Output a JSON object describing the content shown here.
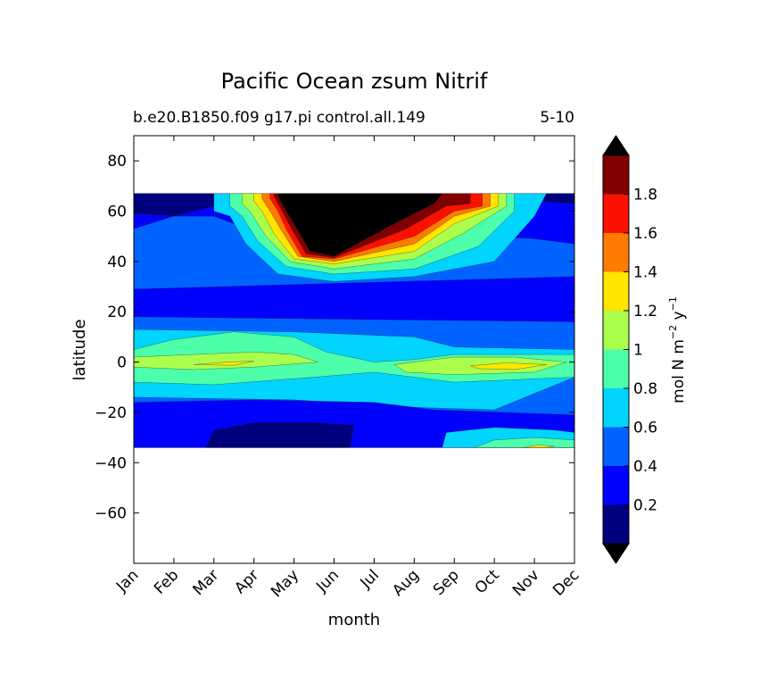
{
  "chart_data": {
    "type": "heatmap",
    "title": "Pacific Ocean zsum Nitrif",
    "subtitle_left": "b.e20.B1850.f09 g17.pi control.all.149",
    "subtitle_right": "5-10",
    "xlabel": "month",
    "ylabel": "latitude",
    "colorbar_label_main": "mol N m",
    "colorbar_label_sup1": "−2",
    "colorbar_label_mid": " y",
    "colorbar_label_sup2": "−1",
    "x_categories": [
      "Jan",
      "Feb",
      "Mar",
      "Apr",
      "May",
      "Jun",
      "Jul",
      "Aug",
      "Sep",
      "Oct",
      "Nov",
      "Dec"
    ],
    "yticks": [
      80,
      60,
      40,
      20,
      0,
      -20,
      -40,
      -60
    ],
    "ytick_labels": [
      "80",
      "60",
      "40",
      "20",
      "0",
      "−20",
      "−40",
      "−60"
    ],
    "ylim": [
      -80,
      90
    ],
    "data_lat_range": [
      -34,
      67
    ],
    "levels": [
      0.2,
      0.4,
      0.6,
      0.8,
      1.0,
      1.2,
      1.4,
      1.6,
      1.8
    ],
    "level_labels": [
      "0.2",
      "0.4",
      "0.6",
      "0.8",
      "1",
      "1.2",
      "1.4",
      "1.6",
      "1.8"
    ],
    "colorbar_extend": "both",
    "band_colors": [
      "#00007f",
      "#0000ff",
      "#0063ff",
      "#00d4ff",
      "#4dffaa",
      "#aaff4d",
      "#ffe500",
      "#ff7a00",
      "#fa1100",
      "#7f0000"
    ],
    "over_color": "#000000",
    "under_color": "#000000",
    "grid": false
  }
}
